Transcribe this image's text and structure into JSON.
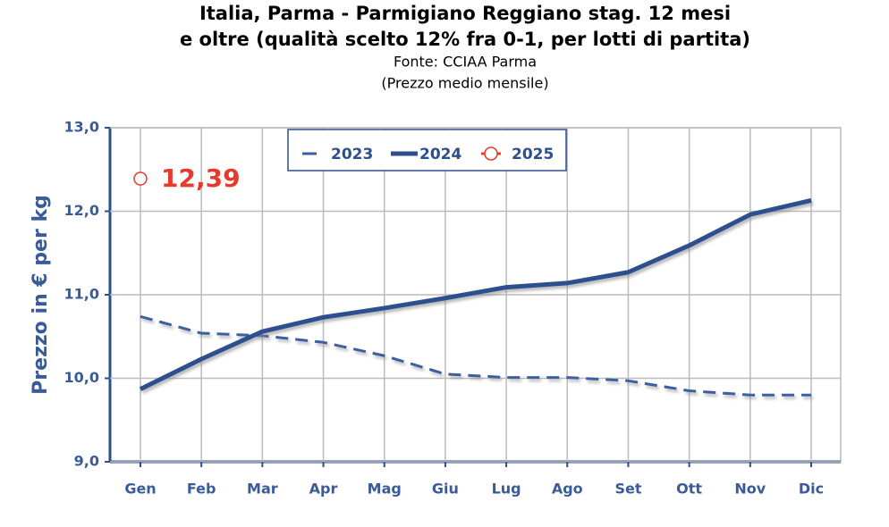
{
  "chart_data": {
    "type": "line",
    "title": "Italia, Parma - Parmigiano Reggiano stag. 12 mesi",
    "title2": "e oltre (qualità scelto 12% fra 0-1, per lotti di partita)",
    "subtitle": "Fonte: CCIAA Parma",
    "subtitle2": "(Prezzo medio mensile)",
    "y_label": "Prezzo in € per kg",
    "categories": [
      "Gen",
      "Feb",
      "Mar",
      "Apr",
      "Mag",
      "Giu",
      "Lug",
      "Ago",
      "Set",
      "Ott",
      "Nov",
      "Dic"
    ],
    "series": [
      {
        "name": "2023",
        "color": "#3a5fa0",
        "style": "dashed",
        "values": [
          10.74,
          10.54,
          10.51,
          10.43,
          10.27,
          10.05,
          10.01,
          10.01,
          9.97,
          9.85,
          9.8,
          9.8
        ]
      },
      {
        "name": "2024",
        "color": "#2d4f8e",
        "style": "solid",
        "values": [
          9.87,
          10.23,
          10.56,
          10.73,
          10.84,
          10.96,
          11.09,
          11.14,
          11.27,
          11.59,
          11.96,
          12.13
        ]
      },
      {
        "name": "2025",
        "color": "#e8392e",
        "style": "marker",
        "values": [
          12.39,
          null,
          null,
          null,
          null,
          null,
          null,
          null,
          null,
          null,
          null,
          null
        ],
        "value_labels": [
          "12,39",
          null,
          null,
          null,
          null,
          null,
          null,
          null,
          null,
          null,
          null,
          null
        ]
      }
    ],
    "ylim": [
      9,
      13
    ],
    "yticks": [
      {
        "value": 9,
        "label": "9,0"
      },
      {
        "value": 10,
        "label": "10,0"
      },
      {
        "value": 11,
        "label": "11,0"
      },
      {
        "value": 12,
        "label": "12,0"
      },
      {
        "value": 13,
        "label": "13,0"
      }
    ],
    "grid": true,
    "legend": "top"
  }
}
